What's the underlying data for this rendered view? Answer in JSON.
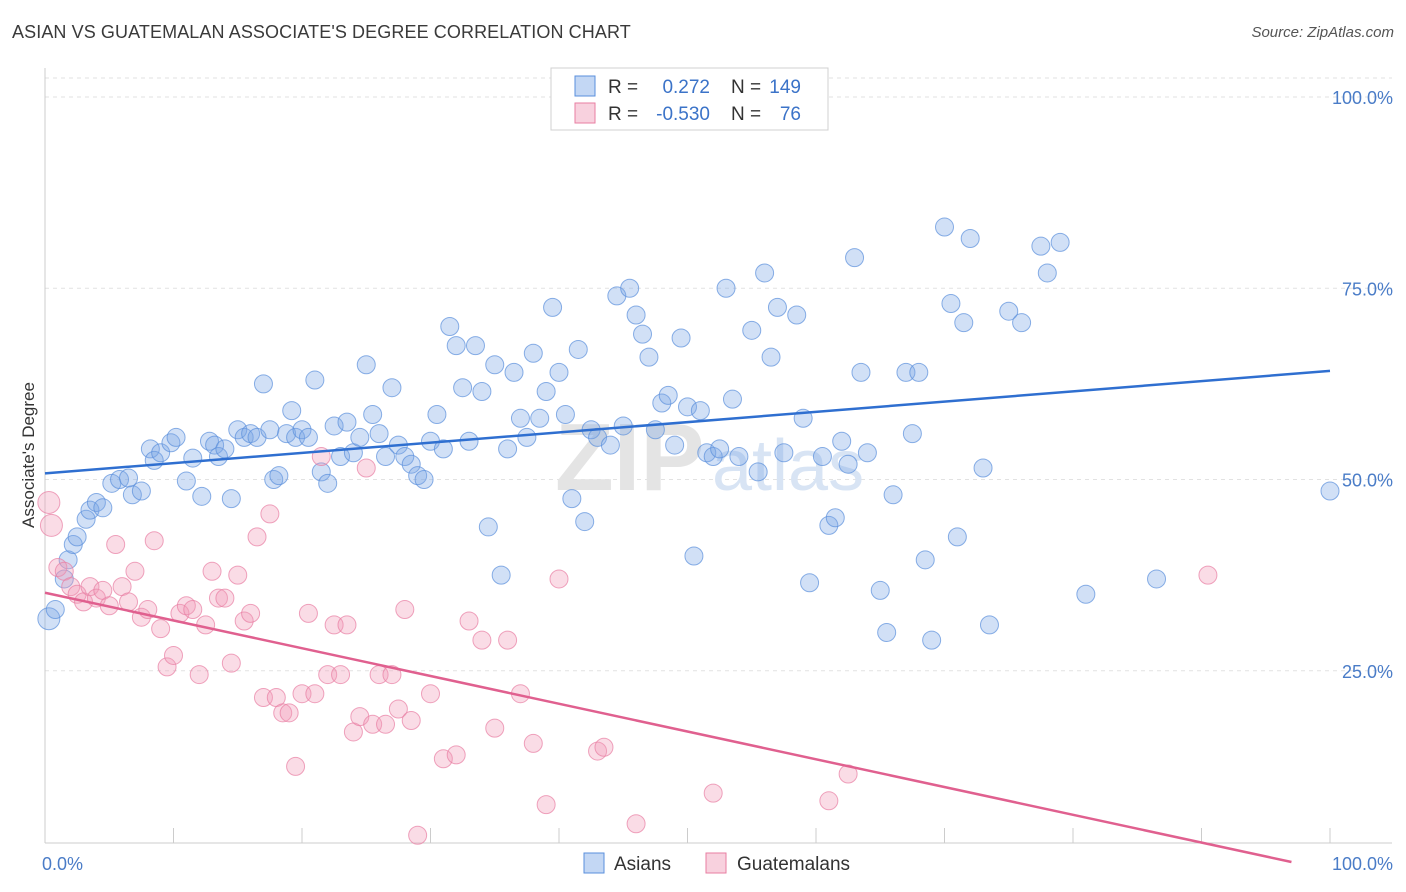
{
  "header": {
    "title": "ASIAN VS GUATEMALAN ASSOCIATE'S DEGREE CORRELATION CHART",
    "source": "Source: ZipAtlas.com"
  },
  "legend": {
    "r_label": "R =",
    "n_label": "N =",
    "asian": {
      "r": "0.272",
      "n": "149",
      "color": "#7ba7e6"
    },
    "guatemalan": {
      "r": "-0.530",
      "n": "76",
      "color": "#f09ab6"
    }
  },
  "watermark": {
    "zip": "ZIP",
    "atlas": "atlas"
  },
  "chart_data": {
    "type": "scatter",
    "xlabel": "",
    "ylabel": "Associate's Degree",
    "x_tick_labels": [
      "0.0%",
      "100.0%"
    ],
    "y_tick_labels": [
      "100.0%",
      "75.0%",
      "50.0%",
      "25.0%"
    ],
    "xlim": [
      0,
      100
    ],
    "ylim": [
      0,
      100
    ],
    "y_ticks": [
      100,
      75,
      50,
      25
    ],
    "grid": "horizontal dashed",
    "legend_position": "top-center",
    "series": [
      {
        "name": "Asians",
        "color": "#7ba7e6",
        "trend": {
          "x": [
            0,
            100
          ],
          "y": [
            50.8,
            64.2
          ]
        },
        "points": [
          [
            0.3,
            31.8
          ],
          [
            0.8,
            33
          ],
          [
            1.5,
            37
          ],
          [
            1.8,
            39.5
          ],
          [
            2.2,
            41.5
          ],
          [
            2.5,
            42.5
          ],
          [
            3.2,
            44.8
          ],
          [
            3.5,
            46
          ],
          [
            4,
            47
          ],
          [
            4.5,
            46.3
          ],
          [
            5.2,
            49.5
          ],
          [
            5.8,
            50
          ],
          [
            6.5,
            50.2
          ],
          [
            6.8,
            48
          ],
          [
            7.5,
            48.5
          ],
          [
            8.2,
            54
          ],
          [
            8.5,
            52.5
          ],
          [
            9,
            53.5
          ],
          [
            9.8,
            54.8
          ],
          [
            10.2,
            55.5
          ],
          [
            11,
            49.8
          ],
          [
            11.5,
            52.8
          ],
          [
            12.2,
            47.8
          ],
          [
            12.8,
            55
          ],
          [
            13.2,
            54.5
          ],
          [
            13.5,
            53
          ],
          [
            14,
            54
          ],
          [
            14.5,
            47.5
          ],
          [
            15,
            56.5
          ],
          [
            15.5,
            55.5
          ],
          [
            16,
            56
          ],
          [
            16.5,
            55.5
          ],
          [
            17,
            62.5
          ],
          [
            17.5,
            56.5
          ],
          [
            17.8,
            50
          ],
          [
            18.2,
            50.5
          ],
          [
            18.8,
            56
          ],
          [
            19.2,
            59
          ],
          [
            19.5,
            55.5
          ],
          [
            20,
            56.5
          ],
          [
            20.5,
            55.5
          ],
          [
            21,
            63
          ],
          [
            21.5,
            51
          ],
          [
            22,
            49.5
          ],
          [
            22.5,
            57
          ],
          [
            23,
            53
          ],
          [
            23.5,
            57.5
          ],
          [
            24,
            53.5
          ],
          [
            24.5,
            55.5
          ],
          [
            25,
            65
          ],
          [
            25.5,
            58.5
          ],
          [
            26,
            56
          ],
          [
            26.5,
            53
          ],
          [
            27,
            62
          ],
          [
            27.5,
            54.5
          ],
          [
            28,
            53
          ],
          [
            28.5,
            52
          ],
          [
            29,
            50.5
          ],
          [
            29.5,
            50
          ],
          [
            30,
            55
          ],
          [
            30.5,
            58.5
          ],
          [
            31,
            54
          ],
          [
            31.5,
            70
          ],
          [
            32,
            67.5
          ],
          [
            32.5,
            62
          ],
          [
            33,
            55
          ],
          [
            33.5,
            67.5
          ],
          [
            34,
            61.5
          ],
          [
            34.5,
            43.8
          ],
          [
            35,
            65
          ],
          [
            35.5,
            37.5
          ],
          [
            36,
            54
          ],
          [
            36.5,
            64
          ],
          [
            37,
            58
          ],
          [
            37.5,
            55.5
          ],
          [
            38,
            66.5
          ],
          [
            38.5,
            58
          ],
          [
            39,
            61.5
          ],
          [
            39.5,
            72.5
          ],
          [
            40,
            64
          ],
          [
            40.5,
            58.5
          ],
          [
            41,
            47.5
          ],
          [
            41.5,
            67
          ],
          [
            42,
            44.5
          ],
          [
            42.5,
            56.5
          ],
          [
            43,
            55.5
          ],
          [
            44,
            54.5
          ],
          [
            44.5,
            74
          ],
          [
            45,
            57
          ],
          [
            45.5,
            75
          ],
          [
            46,
            71.5
          ],
          [
            46.5,
            69
          ],
          [
            47,
            66
          ],
          [
            47.5,
            56.5
          ],
          [
            48,
            60
          ],
          [
            48.5,
            61
          ],
          [
            49,
            54.5
          ],
          [
            49.5,
            68.5
          ],
          [
            50,
            59.5
          ],
          [
            50.5,
            40
          ],
          [
            51,
            59
          ],
          [
            51.5,
            53.5
          ],
          [
            52,
            53
          ],
          [
            52.5,
            54
          ],
          [
            53,
            75
          ],
          [
            53.5,
            60.5
          ],
          [
            54,
            53
          ],
          [
            55,
            69.5
          ],
          [
            55.5,
            51
          ],
          [
            56,
            77
          ],
          [
            56.5,
            66
          ],
          [
            57,
            72.5
          ],
          [
            57.5,
            53.5
          ],
          [
            58.5,
            71.5
          ],
          [
            59,
            58
          ],
          [
            59.5,
            36.5
          ],
          [
            60.5,
            53
          ],
          [
            61,
            44
          ],
          [
            61.5,
            45
          ],
          [
            62,
            55
          ],
          [
            62.5,
            52
          ],
          [
            63,
            79
          ],
          [
            63.5,
            64
          ],
          [
            64,
            53.5
          ],
          [
            65,
            35.5
          ],
          [
            65.5,
            30
          ],
          [
            66,
            48
          ],
          [
            67,
            64
          ],
          [
            67.5,
            56
          ],
          [
            68,
            64
          ],
          [
            68.5,
            39.5
          ],
          [
            69,
            29
          ],
          [
            70,
            83
          ],
          [
            70.5,
            73
          ],
          [
            71,
            42.5
          ],
          [
            71.5,
            70.5
          ],
          [
            72,
            81.5
          ],
          [
            73,
            51.5
          ],
          [
            73.5,
            31
          ],
          [
            75,
            72
          ],
          [
            76,
            70.5
          ],
          [
            77.5,
            80.5
          ],
          [
            78,
            77
          ],
          [
            79,
            81
          ],
          [
            81,
            35
          ],
          [
            86.5,
            37
          ],
          [
            100,
            48.5
          ]
        ]
      },
      {
        "name": "Guatemalans",
        "color": "#f09ab6",
        "trend": {
          "x": [
            0,
            97
          ],
          "y": [
            35.2,
            0
          ]
        },
        "points": [
          [
            0.3,
            47
          ],
          [
            0.5,
            44
          ],
          [
            1,
            38.5
          ],
          [
            1.5,
            38
          ],
          [
            2,
            36
          ],
          [
            2.5,
            35
          ],
          [
            3,
            34
          ],
          [
            3.5,
            36
          ],
          [
            4,
            34.5
          ],
          [
            4.5,
            35.5
          ],
          [
            5,
            33.5
          ],
          [
            5.5,
            41.5
          ],
          [
            6,
            36
          ],
          [
            6.5,
            34
          ],
          [
            7,
            38
          ],
          [
            7.5,
            32
          ],
          [
            8,
            33
          ],
          [
            8.5,
            42
          ],
          [
            9,
            30.5
          ],
          [
            9.5,
            25.5
          ],
          [
            10,
            27
          ],
          [
            10.5,
            32.5
          ],
          [
            11,
            33.5
          ],
          [
            11.5,
            33
          ],
          [
            12,
            24.5
          ],
          [
            12.5,
            31
          ],
          [
            13,
            38
          ],
          [
            13.5,
            34.5
          ],
          [
            14,
            34.5
          ],
          [
            14.5,
            26
          ],
          [
            15,
            37.5
          ],
          [
            15.5,
            31.5
          ],
          [
            16,
            32.5
          ],
          [
            16.5,
            42.5
          ],
          [
            17,
            21.5
          ],
          [
            17.5,
            45.5
          ],
          [
            18,
            21.5
          ],
          [
            18.5,
            19.5
          ],
          [
            19,
            19.5
          ],
          [
            19.5,
            12.5
          ],
          [
            20,
            22
          ],
          [
            20.5,
            32.5
          ],
          [
            21,
            22
          ],
          [
            21.5,
            53
          ],
          [
            22,
            24.5
          ],
          [
            22.5,
            31
          ],
          [
            23,
            24.5
          ],
          [
            23.5,
            31
          ],
          [
            24,
            17
          ],
          [
            24.5,
            19
          ],
          [
            25,
            51.5
          ],
          [
            25.5,
            18
          ],
          [
            26,
            24.5
          ],
          [
            26.5,
            18
          ],
          [
            27,
            24.5
          ],
          [
            27.5,
            20
          ],
          [
            28,
            33
          ],
          [
            28.5,
            18.5
          ],
          [
            29,
            3.5
          ],
          [
            30,
            22
          ],
          [
            31,
            13.5
          ],
          [
            32,
            14
          ],
          [
            33,
            31.5
          ],
          [
            34,
            29
          ],
          [
            35,
            17.5
          ],
          [
            36,
            29
          ],
          [
            37,
            22
          ],
          [
            38,
            15.5
          ],
          [
            39,
            7.5
          ],
          [
            40,
            37
          ],
          [
            43,
            14.5
          ],
          [
            43.5,
            15
          ],
          [
            46,
            5
          ],
          [
            52,
            9
          ],
          [
            61,
            8
          ],
          [
            62.5,
            11.5
          ],
          [
            90.5,
            37.5
          ]
        ]
      }
    ],
    "bottom_legend": [
      "Asians",
      "Guatemalans"
    ]
  }
}
